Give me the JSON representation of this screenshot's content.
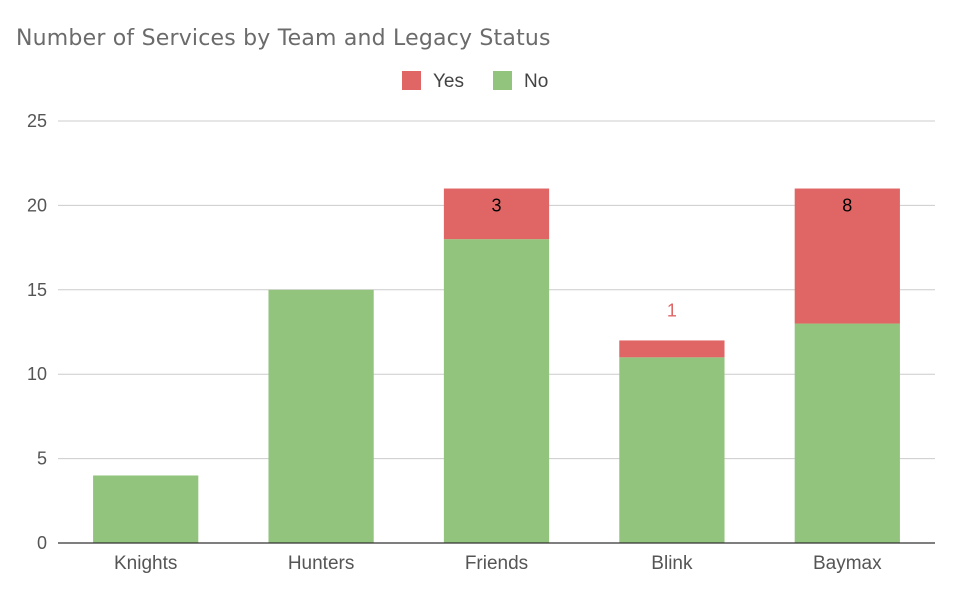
{
  "chart_data": {
    "type": "bar",
    "stacked": true,
    "title": "Number of Services by Team and Legacy Status",
    "xlabel": "",
    "ylabel": "",
    "ylim": [
      0,
      25
    ],
    "yticks": [
      0,
      5,
      10,
      15,
      20,
      25
    ],
    "grid": true,
    "legend": "top-center",
    "categories": [
      "Knights",
      "Hunters",
      "Friends",
      "Blink",
      "Baymax"
    ],
    "series": [
      {
        "name": "No",
        "color": "#93c47d",
        "values": [
          4,
          15,
          18,
          11,
          13
        ]
      },
      {
        "name": "Yes",
        "color": "#e06666",
        "values": [
          0,
          0,
          3,
          1,
          8
        ]
      }
    ],
    "legend_order": [
      "Yes",
      "No"
    ],
    "data_labels": [
      {
        "category": "Friends",
        "series": "Yes",
        "text": "3",
        "color": "#000000",
        "placement": "inside"
      },
      {
        "category": "Blink",
        "series": "Yes",
        "text": "1",
        "color": "#e06666",
        "placement": "above"
      },
      {
        "category": "Baymax",
        "series": "Yes",
        "text": "8",
        "color": "#000000",
        "placement": "inside"
      }
    ]
  }
}
